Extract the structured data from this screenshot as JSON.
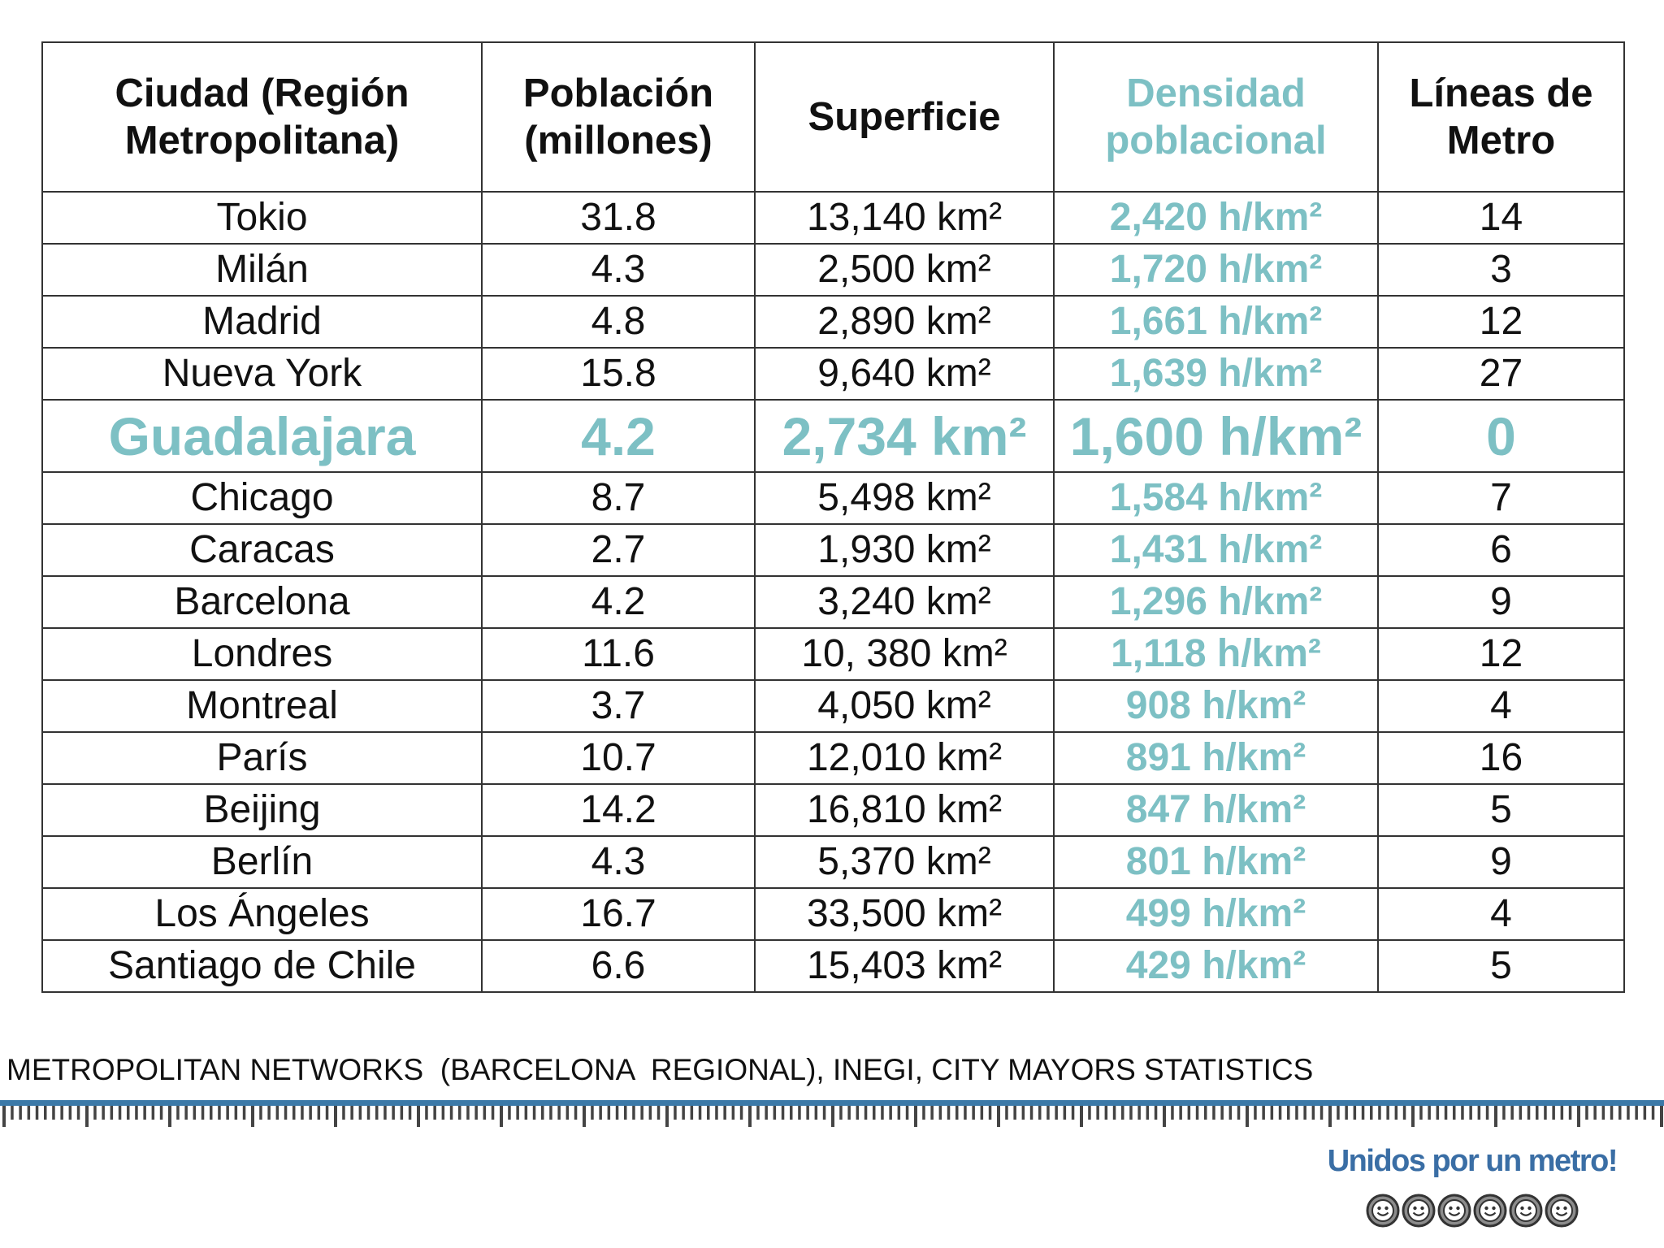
{
  "table": {
    "headers": [
      {
        "lines": [
          "Ciudad (Región",
          "Metropolitana)"
        ]
      },
      {
        "lines": [
          "Población",
          "(millones)"
        ]
      },
      {
        "lines": [
          "Superficie"
        ]
      },
      {
        "lines": [
          "Densidad",
          "poblacional"
        ]
      },
      {
        "lines": [
          "Líneas de",
          "Metro"
        ]
      }
    ],
    "rows": [
      {
        "city": "Tokio",
        "population": "31.8",
        "area": "13,140 km²",
        "density": "2,420 h/km²",
        "lines": "14"
      },
      {
        "city": "Milán",
        "population": "4.3",
        "area": "2,500 km²",
        "density": "1,720 h/km²",
        "lines": "3"
      },
      {
        "city": "Madrid",
        "population": "4.8",
        "area": "2,890 km²",
        "density": "1,661 h/km²",
        "lines": "12"
      },
      {
        "city": "Nueva York",
        "population": "15.8",
        "area": "9,640 km²",
        "density": "1,639 h/km²",
        "lines": "27"
      },
      {
        "city": "Guadalajara",
        "population": "4.2",
        "area": "2,734 km²",
        "density": "1,600 h/km²",
        "lines": "0",
        "highlight": true
      },
      {
        "city": "Chicago",
        "population": "8.7",
        "area": "5,498 km²",
        "density": "1,584 h/km²",
        "lines": "7"
      },
      {
        "city": "Caracas",
        "population": "2.7",
        "area": "1,930 km²",
        "density": "1,431 h/km²",
        "lines": "6"
      },
      {
        "city": "Barcelona",
        "population": "4.2",
        "area": "3,240 km²",
        "density": "1,296 h/km²",
        "lines": "9"
      },
      {
        "city": "Londres",
        "population": "11.6",
        "area": "10, 380 km²",
        "density": "1,118 h/km²",
        "lines": "12"
      },
      {
        "city": "Montreal",
        "population": "3.7",
        "area": "4,050  km²",
        "density": "908 h/km²",
        "lines": "4"
      },
      {
        "city": "París",
        "population": "10.7",
        "area": "12,010 km²",
        "density": "891 h/km²",
        "lines": "16"
      },
      {
        "city": "Beijing",
        "population": "14.2",
        "area": "16,810 km²",
        "density": "847 h/km²",
        "lines": "5"
      },
      {
        "city": "Berlín",
        "population": "4.3",
        "area": "5,370 km²",
        "density": "801 h/km²",
        "lines": "9"
      },
      {
        "city": "Los Ángeles",
        "population": "16.7",
        "area": "33,500 km²",
        "density": "499 h/km²",
        "lines": "4"
      },
      {
        "city": "Santiago de Chile",
        "population": "6.6",
        "area": "15,403 km²",
        "density": "429 h/km²",
        "lines": "5"
      }
    ]
  },
  "footer": {
    "source": "METROPOLITAN NETWORKS  (BARCELONA  REGIONAL), INEGI, CITY MAYORS STATISTICS",
    "brand": "Unidos por un metro!",
    "smiley_count": 6
  },
  "colors": {
    "accent_teal": "#7dc0c4",
    "brand_blue": "#3a6ea5",
    "ruler_blue": "#3b79a8",
    "text": "#111111"
  }
}
